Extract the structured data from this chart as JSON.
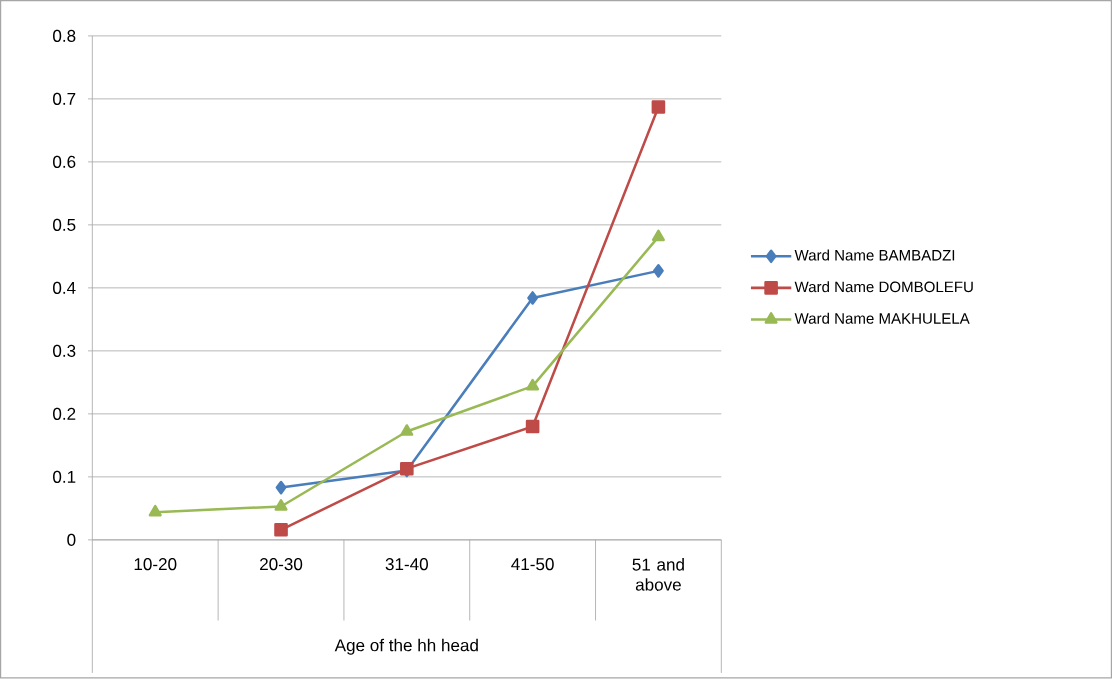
{
  "chart_data": {
    "type": "line",
    "categories": [
      "10-20",
      "20-30",
      "31-40",
      "41-50",
      "51 and above"
    ],
    "xlabel": "Age of the hh head",
    "series": [
      {
        "name": "Ward Name BAMBADZI",
        "color": "#4a7ebb",
        "marker": "diamond",
        "values": [
          null,
          0.083,
          0.11,
          0.384,
          0.427
        ]
      },
      {
        "name": "Ward Name DOMBOLEFU",
        "color": "#be4b48",
        "marker": "square",
        "values": [
          null,
          0.016,
          0.113,
          0.18,
          0.687
        ]
      },
      {
        "name": "Ward Name MAKHULELA",
        "color": "#98b954",
        "marker": "triangle",
        "values": [
          0.044,
          0.053,
          0.172,
          0.244,
          0.481
        ]
      }
    ],
    "ylim": [
      0,
      0.8
    ],
    "yticks": [
      0,
      0.1,
      0.2,
      0.3,
      0.4,
      0.5,
      0.6,
      0.7,
      0.8
    ],
    "grid": "y",
    "legend": "right"
  }
}
